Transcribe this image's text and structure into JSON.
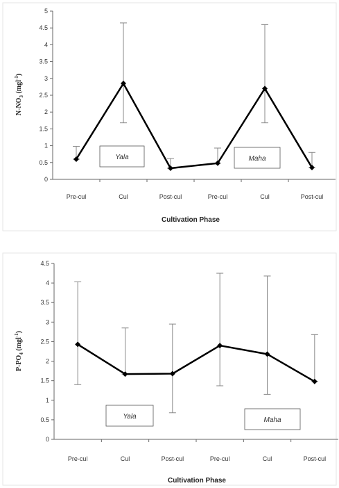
{
  "chart_data": [
    {
      "type": "line",
      "title": "",
      "xlabel": "Cultivation Phase",
      "ylabel": "N-NO",
      "ylabel_sub": "3",
      "ylabel_unit": " (mgl",
      "ylabel_sup": "-1",
      "ylabel_close": ")",
      "ylim": [
        0,
        5
      ],
      "yticks": [
        "0",
        "0.5",
        "1",
        "1.5",
        "2",
        "2.5",
        "3",
        "3.5",
        "4",
        "4.5",
        "5"
      ],
      "categories": [
        "Pre-cul",
        "Cul",
        "Post-cul",
        "Pre-cul",
        "Cul",
        "Post-cul"
      ],
      "series": [
        {
          "values": [
            0.6,
            2.85,
            0.33,
            0.48,
            2.7,
            0.35
          ],
          "error_upper": [
            0.98,
            4.65,
            0.62,
            0.93,
            4.6,
            0.8
          ],
          "error_lower": [
            0.6,
            1.68,
            0.33,
            0.48,
            1.68,
            0.35
          ]
        }
      ],
      "annotations": [
        "Yala",
        "Maha"
      ],
      "line_color": "#000000",
      "errorbar_color": "#888888",
      "grid": false
    },
    {
      "type": "line",
      "title": "",
      "xlabel": "Cultivation Phase",
      "ylabel": "P-PO",
      "ylabel_sub": "4",
      "ylabel_unit": " (mgl",
      "ylabel_sup": "-1",
      "ylabel_close": ")",
      "ylim": [
        0,
        4.5
      ],
      "yticks": [
        "0",
        "0.5",
        "1",
        "1.5",
        "2",
        "2.5",
        "3",
        "3.5",
        "4",
        "4.5"
      ],
      "categories": [
        "Pre-cul",
        "Cul",
        "Post-cul",
        "Pre-cul",
        "Cul",
        "Post-cul"
      ],
      "series": [
        {
          "values": [
            2.43,
            1.67,
            1.68,
            2.4,
            2.18,
            1.48
          ],
          "error_upper": [
            4.03,
            2.85,
            2.95,
            4.25,
            4.18,
            2.68
          ],
          "error_lower": [
            1.4,
            1.67,
            0.68,
            1.37,
            1.15,
            1.48
          ]
        }
      ],
      "annotations": [
        "Yala",
        "Maha"
      ],
      "line_color": "#000000",
      "errorbar_color": "#888888",
      "grid": false
    }
  ]
}
